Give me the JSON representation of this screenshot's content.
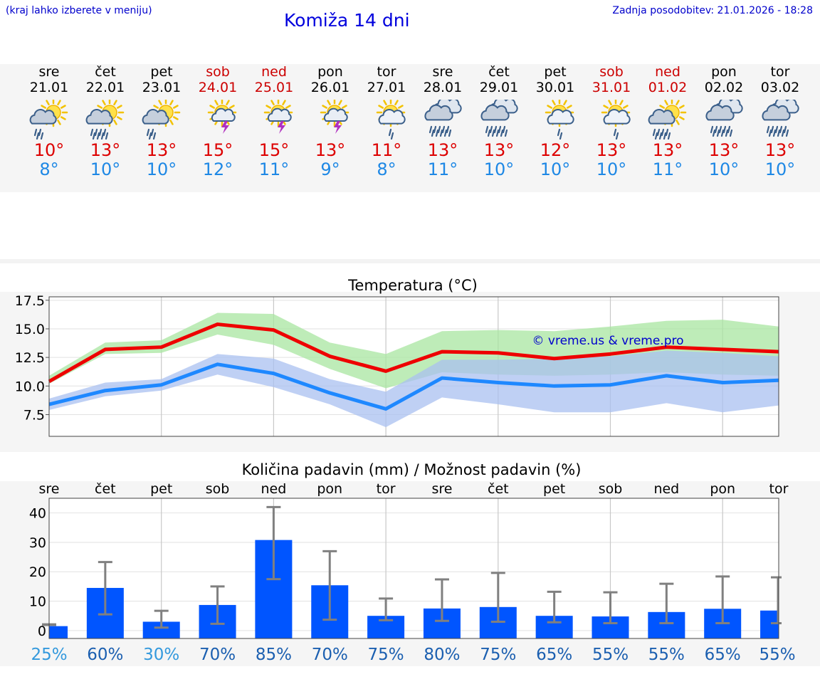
{
  "header": {
    "region_hint": "(kraj lahko izberete v meniju)",
    "title": "Komiža 14 dni",
    "updated": "Zadnja posodobitev: 21.01.2026 - 18:28"
  },
  "days": [
    {
      "name": "sre",
      "date": "21.01",
      "weekend": false,
      "icon": "sun-cloud-rain-icon",
      "tmax": "10°",
      "tmin": "8°"
    },
    {
      "name": "čet",
      "date": "22.01",
      "weekend": false,
      "icon": "sun-cloud-heavy-rain-icon",
      "tmax": "13°",
      "tmin": "10°"
    },
    {
      "name": "pet",
      "date": "23.01",
      "weekend": false,
      "icon": "sun-cloud-rain-icon",
      "tmax": "13°",
      "tmin": "10°"
    },
    {
      "name": "sob",
      "date": "24.01",
      "weekend": true,
      "icon": "sun-thunderstorm-icon",
      "tmax": "15°",
      "tmin": "12°"
    },
    {
      "name": "ned",
      "date": "25.01",
      "weekend": true,
      "icon": "sun-thunderstorm-icon",
      "tmax": "15°",
      "tmin": "11°"
    },
    {
      "name": "pon",
      "date": "26.01",
      "weekend": false,
      "icon": "sun-thunderstorm-icon",
      "tmax": "13°",
      "tmin": "9°"
    },
    {
      "name": "tor",
      "date": "27.01",
      "weekend": false,
      "icon": "sun-cloud-light-rain-icon",
      "tmax": "11°",
      "tmin": "8°"
    },
    {
      "name": "sre",
      "date": "28.01",
      "weekend": false,
      "icon": "cloud-heavy-rain-icon",
      "tmax": "13°",
      "tmin": "11°"
    },
    {
      "name": "čet",
      "date": "29.01",
      "weekend": false,
      "icon": "cloud-heavy-rain-icon",
      "tmax": "13°",
      "tmin": "10°"
    },
    {
      "name": "pet",
      "date": "30.01",
      "weekend": false,
      "icon": "sun-cloud-light-rain-icon",
      "tmax": "12°",
      "tmin": "10°"
    },
    {
      "name": "sob",
      "date": "31.01",
      "weekend": true,
      "icon": "sun-cloud-light-rain-icon",
      "tmax": "13°",
      "tmin": "10°"
    },
    {
      "name": "ned",
      "date": "01.02",
      "weekend": true,
      "icon": "sun-cloud-heavy-rain-icon",
      "tmax": "13°",
      "tmin": "11°"
    },
    {
      "name": "pon",
      "date": "02.02",
      "weekend": false,
      "icon": "cloud-heavy-rain-icon",
      "tmax": "13°",
      "tmin": "10°"
    },
    {
      "name": "tor",
      "date": "03.02",
      "weekend": false,
      "icon": "cloud-heavy-rain-icon",
      "tmax": "13°",
      "tmin": "10°"
    }
  ],
  "colors": {
    "tmax_line": "#ee0000",
    "tmin_line": "#1e88ff",
    "tmax_band": "#a8e6a0",
    "tmin_band": "#a9c0f0",
    "overlap_band": "#7dc4a4",
    "bar": "#0055ff",
    "weekday_text": "#000000",
    "weekend_text": "#cc0000",
    "watermark": "#0000cc"
  },
  "chart_data": [
    {
      "type": "line",
      "title": "Temperatura (°C)",
      "watermark": "© vreme.us & vreme.pro",
      "x": [
        0,
        1,
        2,
        3,
        4,
        5,
        6,
        7,
        8,
        9,
        10,
        11,
        12,
        13
      ],
      "yticks": [
        "17.5",
        "15.0",
        "12.5",
        "10.0",
        "7.5"
      ],
      "ytick_values": [
        17.5,
        15.0,
        12.5,
        10.0,
        7.5
      ],
      "ylim": [
        5.6,
        17.8
      ],
      "series": [
        {
          "name": "Tmax",
          "values": [
            10.4,
            13.2,
            13.4,
            15.4,
            14.9,
            12.6,
            11.3,
            13.0,
            12.9,
            12.4,
            12.8,
            13.4,
            13.2,
            13.0
          ],
          "band_low": [
            10.2,
            12.8,
            12.9,
            14.5,
            13.6,
            11.5,
            9.8,
            11.2,
            11.0,
            10.9,
            11.0,
            11.2,
            11.0,
            10.9
          ],
          "band_high": [
            10.9,
            13.8,
            14.0,
            16.4,
            16.3,
            13.8,
            12.8,
            14.8,
            14.9,
            14.8,
            15.2,
            15.7,
            15.8,
            15.2
          ]
        },
        {
          "name": "Tmin",
          "values": [
            8.4,
            9.6,
            10.1,
            11.9,
            11.1,
            9.4,
            8.0,
            10.7,
            10.3,
            10.0,
            10.1,
            10.9,
            10.3,
            10.5
          ],
          "band_low": [
            7.9,
            9.1,
            9.6,
            11.0,
            9.9,
            8.4,
            6.4,
            9.0,
            8.4,
            7.7,
            7.7,
            8.5,
            7.7,
            8.3
          ],
          "band_high": [
            8.9,
            10.3,
            10.6,
            12.8,
            12.4,
            10.6,
            9.5,
            12.3,
            12.3,
            12.4,
            12.6,
            13.1,
            12.9,
            12.6
          ]
        }
      ]
    },
    {
      "type": "bar",
      "title": "Količina padavin (mm) / Možnost padavin (%)",
      "categories": [
        "sre",
        "čet",
        "pet",
        "sob",
        "ned",
        "pon",
        "tor",
        "sre",
        "čet",
        "pet",
        "sob",
        "ned",
        "pon",
        "tor"
      ],
      "yticks": [
        "40",
        "30",
        "20",
        "10",
        "0"
      ],
      "ytick_values": [
        40,
        30,
        20,
        10,
        0
      ],
      "ylim": [
        -2.7,
        45.0
      ],
      "values": [
        1.5,
        14.5,
        3.0,
        8.7,
        30.8,
        15.4,
        5.0,
        7.5,
        8.0,
        5.0,
        4.8,
        6.3,
        7.4,
        6.8
      ],
      "err_low": [
        1.9,
        5.5,
        1.0,
        2.3,
        17.5,
        3.7,
        3.5,
        3.3,
        3.0,
        2.8,
        2.5,
        2.5,
        2.5,
        2.5
      ],
      "err_high": [
        2.1,
        23.3,
        6.7,
        15.0,
        42.0,
        27.0,
        10.9,
        17.4,
        19.6,
        13.2,
        13.0,
        15.9,
        18.4,
        18.1
      ],
      "chance": [
        "25%",
        "60%",
        "30%",
        "70%",
        "85%",
        "70%",
        "75%",
        "80%",
        "75%",
        "65%",
        "55%",
        "55%",
        "65%",
        "55%"
      ],
      "chance_values": [
        25,
        60,
        30,
        70,
        85,
        70,
        75,
        80,
        75,
        65,
        55,
        55,
        65,
        55
      ]
    }
  ]
}
